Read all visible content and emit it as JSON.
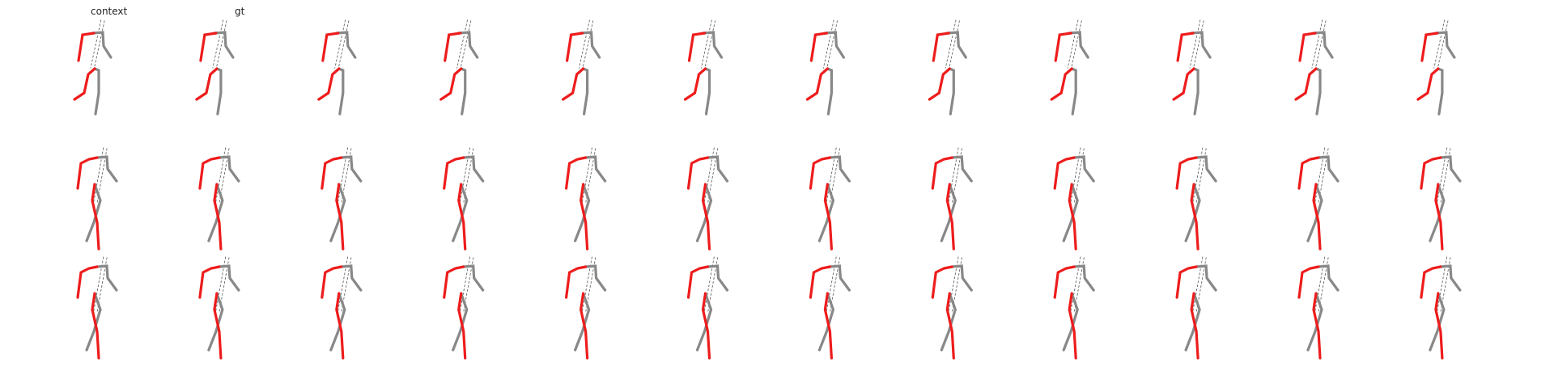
{
  "figure": {
    "rows": 3,
    "columns": 12,
    "labels": [
      "context",
      "gt"
    ]
  },
  "colors": {
    "background": "#ffffff",
    "highlighted_limbs": "#ee1c1c",
    "other_limbs": "#888888",
    "spine": "#555555",
    "label_text": "#222222"
  },
  "poses": {
    "row_1": "arms-raised-left-leg-bent",
    "row_2": "crossed-legs-stride",
    "row_3": "crossed-legs-stride"
  }
}
